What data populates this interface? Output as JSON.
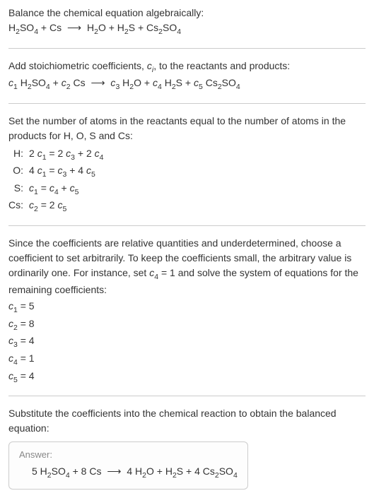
{
  "s1": {
    "line1": "Balance the chemical equation algebraically:",
    "eq_lhs1": "H",
    "eq_lhs1_sub": "2",
    "eq_lhs2": "SO",
    "eq_lhs2_sub": "4",
    "plus1": " + Cs ",
    "arrow": "⟶",
    "eq_rhs1": " H",
    "eq_rhs1_sub": "2",
    "eq_rhs2": "O + H",
    "eq_rhs2_sub": "2",
    "eq_rhs3": "S + Cs",
    "eq_rhs3_sub": "2",
    "eq_rhs4": "SO",
    "eq_rhs4_sub": "4"
  },
  "s2": {
    "line1a": "Add stoichiometric coefficients, ",
    "ci": "c",
    "ci_sub": "i",
    "line1b": ", to the reactants and products:",
    "c1": "c",
    "c1_sub": "1",
    "sp1": " H",
    "sp1_sub": "2",
    "sp1b": "SO",
    "sp1b_sub": "4",
    "plus1": " + ",
    "c2": "c",
    "c2_sub": "2",
    "sp2": " Cs ",
    "arrow": "⟶",
    "c3": " c",
    "c3_sub": "3",
    "sp3": " H",
    "sp3_sub": "2",
    "sp3b": "O + ",
    "c4": "c",
    "c4_sub": "4",
    "sp4": " H",
    "sp4_sub": "2",
    "sp4b": "S + ",
    "c5": "c",
    "c5_sub": "5",
    "sp5": " Cs",
    "sp5_sub": "2",
    "sp5b": "SO",
    "sp5b_sub": "4"
  },
  "s3": {
    "intro": "Set the number of atoms in the reactants equal to the number of atoms in the products for H, O, S and Cs:",
    "rows": [
      {
        "label": "H:",
        "lhs_a": "2 ",
        "lhs_c": "c",
        "lhs_sub": "1",
        "eq": " = 2 ",
        "rhs_c1": "c",
        "rhs_sub1": "3",
        "mid": " + 2 ",
        "rhs_c2": "c",
        "rhs_sub2": "4"
      },
      {
        "label": "O:",
        "lhs_a": "4 ",
        "lhs_c": "c",
        "lhs_sub": "1",
        "eq": " = ",
        "rhs_c1": "c",
        "rhs_sub1": "3",
        "mid": " + 4 ",
        "rhs_c2": "c",
        "rhs_sub2": "5"
      },
      {
        "label": "S:",
        "lhs_a": "",
        "lhs_c": "c",
        "lhs_sub": "1",
        "eq": " = ",
        "rhs_c1": "c",
        "rhs_sub1": "4",
        "mid": " + ",
        "rhs_c2": "c",
        "rhs_sub2": "5"
      },
      {
        "label": "Cs:",
        "lhs_a": "",
        "lhs_c": "c",
        "lhs_sub": "2",
        "eq": " = 2 ",
        "rhs_c1": "c",
        "rhs_sub1": "5",
        "mid": "",
        "rhs_c2": "",
        "rhs_sub2": ""
      }
    ]
  },
  "s4": {
    "p1": "Since the coefficients are relative quantities and underdetermined, choose a coefficient to set arbitrarily. To keep the coefficients small, the arbitrary value is ordinarily one. For instance, set ",
    "c4": "c",
    "c4_sub": "4",
    "p2": " = 1 and solve the system of equations for the remaining coefficients:",
    "coefs": [
      {
        "c": "c",
        "sub": "1",
        "val": " = 5"
      },
      {
        "c": "c",
        "sub": "2",
        "val": " = 8"
      },
      {
        "c": "c",
        "sub": "3",
        "val": " = 4"
      },
      {
        "c": "c",
        "sub": "4",
        "val": " = 1"
      },
      {
        "c": "c",
        "sub": "5",
        "val": " = 4"
      }
    ]
  },
  "s5": {
    "intro": "Substitute the coefficients into the chemical reaction to obtain the balanced equation:",
    "answer_label": "Answer:",
    "a1": "5 H",
    "a1_sub": "2",
    "a2": "SO",
    "a2_sub": "4",
    "a3": " + 8 Cs ",
    "arrow": "⟶",
    "a4": " 4 H",
    "a4_sub": "2",
    "a5": "O + H",
    "a5_sub": "2",
    "a6": "S + 4 Cs",
    "a6_sub": "2",
    "a7": "SO",
    "a7_sub": "4"
  }
}
